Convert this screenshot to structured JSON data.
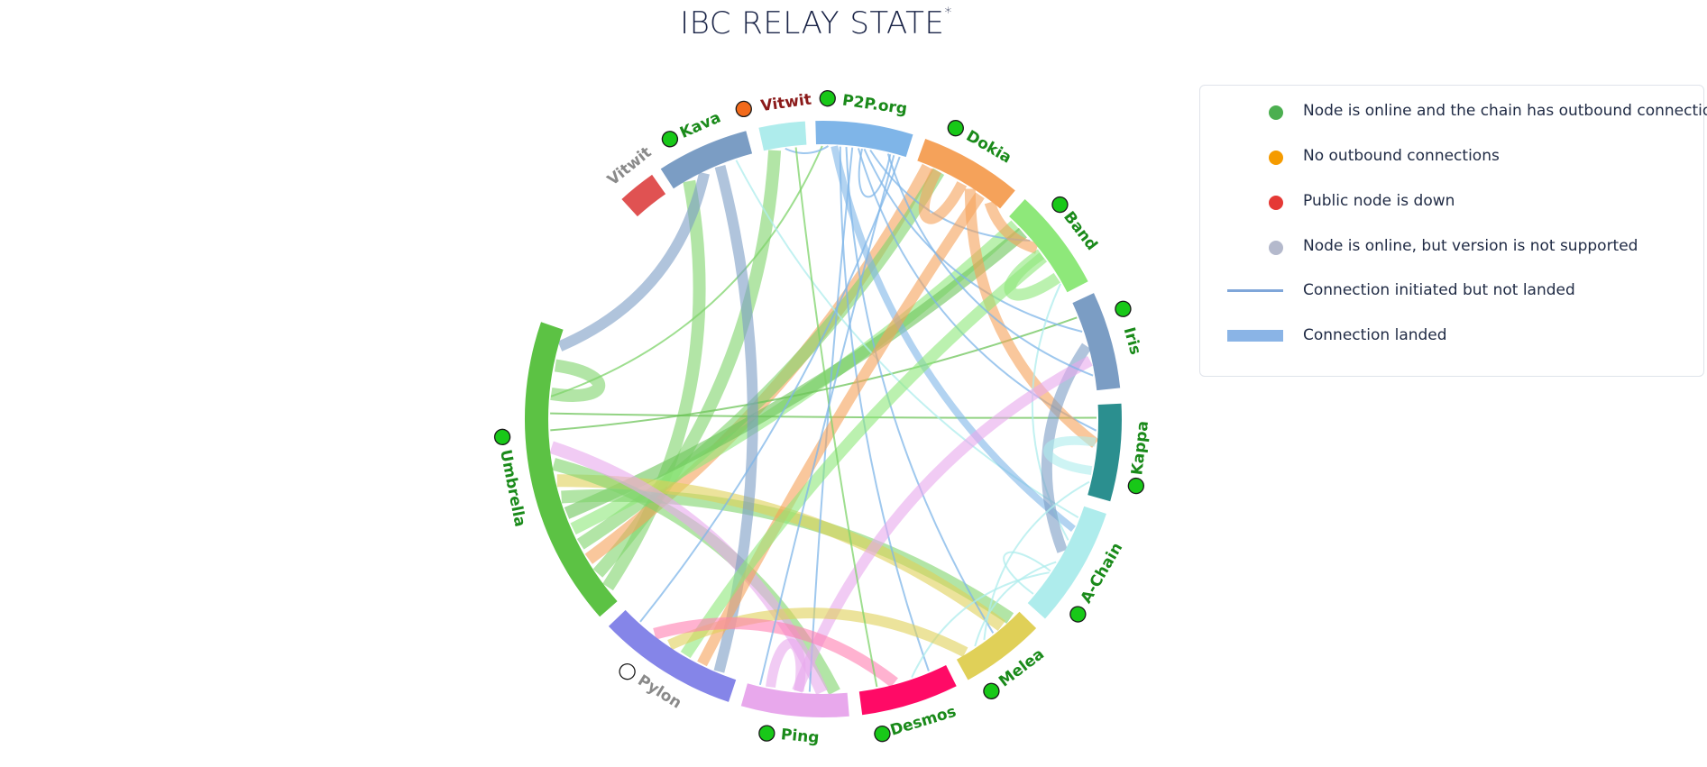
{
  "title": {
    "text": "IBC RELAY STATE",
    "footnote_mark": "*"
  },
  "legend": {
    "items": [
      {
        "kind": "dot",
        "color": "#4caf50",
        "label": "Node is online and the chain has outbound connections"
      },
      {
        "kind": "dot",
        "color": "#f59b00",
        "label": "No outbound connections"
      },
      {
        "kind": "dot",
        "color": "#e53935",
        "label": "Public node is down"
      },
      {
        "kind": "dot",
        "color": "#b4b9cc",
        "label": "Node is online, but version is not supported"
      },
      {
        "kind": "line-thin",
        "color": "#7fa6d9",
        "label": "Connection initiated but not landed"
      },
      {
        "kind": "line-thick",
        "color": "#8ab4e6",
        "label": "Connection landed"
      }
    ]
  },
  "status_colors": {
    "online": "#18c818",
    "no_outbound": "#f26a1b",
    "not_supported": "#ffffff"
  },
  "chains": [
    {
      "id": "vitwit_top",
      "label": "Vitwit",
      "status": "no_outbound",
      "label_color": "#8b1a1a",
      "arc_color": "#aeecec"
    },
    {
      "id": "p2p",
      "label": "P2P.org",
      "status": "online",
      "label_color": "#1a8a1a",
      "arc_color": "#7fb5e8"
    },
    {
      "id": "dokia",
      "label": "Dokia",
      "status": "online",
      "label_color": "#1a8a1a",
      "arc_color": "#f5a25a"
    },
    {
      "id": "band",
      "label": "Band",
      "status": "online",
      "label_color": "#1a8a1a",
      "arc_color": "#8ee87a"
    },
    {
      "id": "iris",
      "label": "Iris",
      "status": "online",
      "label_color": "#1a8a1a",
      "arc_color": "#7b9dc4"
    },
    {
      "id": "kappa",
      "label": "Kappa",
      "status": "online",
      "label_color": "#1a8a1a",
      "arc_color": "#2b8f8f"
    },
    {
      "id": "achain",
      "label": "A-Chain",
      "status": "online",
      "label_color": "#1a8a1a",
      "arc_color": "#aeecec"
    },
    {
      "id": "melea",
      "label": "Melea",
      "status": "online",
      "label_color": "#1a8a1a",
      "arc_color": "#e0d058"
    },
    {
      "id": "desmos",
      "label": "Desmos",
      "status": "online",
      "label_color": "#1a8a1a",
      "arc_color": "#ff0a66"
    },
    {
      "id": "ping",
      "label": "Ping",
      "status": "online",
      "label_color": "#1a8a1a",
      "arc_color": "#e8a8ec"
    },
    {
      "id": "pylon",
      "label": "Pylon",
      "status": "not_supported",
      "label_color": "#8a8a8a",
      "arc_color": "#8585e8"
    },
    {
      "id": "umbrella",
      "label": "Umbrella",
      "status": "online",
      "label_color": "#1a8a1a",
      "arc_color": "#5cc244"
    },
    {
      "id": "vitwit_small",
      "label": "Vitwit",
      "status": "hidden",
      "label_color": "#8a8a8a",
      "arc_color": "#e05252"
    },
    {
      "id": "kava",
      "label": "Kava",
      "status": "online",
      "label_color": "#1a8a1a",
      "arc_color": "#7b9dc4"
    }
  ],
  "links": [
    {
      "source": "umbrella",
      "target": "kava",
      "landed": true,
      "color": "#7ed36a"
    },
    {
      "source": "umbrella",
      "target": "vitwit_top",
      "landed": true,
      "color": "#7ed36a"
    },
    {
      "source": "umbrella",
      "target": "dokia",
      "landed": true,
      "color": "#f5a25a"
    },
    {
      "source": "umbrella",
      "target": "dokia",
      "landed": true,
      "color": "#7ed36a"
    },
    {
      "source": "umbrella",
      "target": "band",
      "landed": true,
      "color": "#8ee87a"
    },
    {
      "source": "umbrella",
      "target": "band",
      "landed": true,
      "color": "#6dc45a"
    },
    {
      "source": "umbrella",
      "target": "melea",
      "landed": true,
      "color": "#7ed36a"
    },
    {
      "source": "umbrella",
      "target": "melea",
      "landed": true,
      "color": "#e0d058"
    },
    {
      "source": "umbrella",
      "target": "ping",
      "landed": true,
      "color": "#7ed36a"
    },
    {
      "source": "umbrella",
      "target": "ping",
      "landed": true,
      "color": "#e8a8ec"
    },
    {
      "source": "umbrella",
      "target": "iris",
      "landed": false,
      "color": "#6dc45a"
    },
    {
      "source": "umbrella",
      "target": "kappa",
      "landed": false,
      "color": "#6dc45a"
    },
    {
      "source": "umbrella",
      "target": "p2p",
      "landed": false,
      "color": "#7ed36a"
    },
    {
      "source": "umbrella",
      "target": "umbrella",
      "landed": true,
      "color": "#7ed36a"
    },
    {
      "source": "kava",
      "target": "umbrella",
      "landed": true,
      "color": "#7b9dc4"
    },
    {
      "source": "kava",
      "target": "pylon",
      "landed": true,
      "color": "#7b9dc4"
    },
    {
      "source": "kava",
      "target": "achain",
      "landed": false,
      "color": "#aeecec"
    },
    {
      "source": "vitwit_top",
      "target": "p2p",
      "landed": false,
      "color": "#7fb5e8"
    },
    {
      "source": "p2p",
      "target": "achain",
      "landed": true,
      "color": "#7fb5e8"
    },
    {
      "source": "p2p",
      "target": "desmos",
      "landed": false,
      "color": "#7fb5e8"
    },
    {
      "source": "p2p",
      "target": "melea",
      "landed": false,
      "color": "#7fb5e8"
    },
    {
      "source": "p2p",
      "target": "ping",
      "landed": false,
      "color": "#7fb5e8"
    },
    {
      "source": "p2p",
      "target": "kappa",
      "landed": false,
      "color": "#7fb5e8"
    },
    {
      "source": "p2p",
      "target": "iris",
      "landed": false,
      "color": "#7fb5e8"
    },
    {
      "source": "p2p",
      "target": "band",
      "landed": false,
      "color": "#7fb5e8"
    },
    {
      "source": "p2p",
      "target": "p2p",
      "landed": false,
      "color": "#7fb5e8"
    },
    {
      "source": "dokia",
      "target": "dokia",
      "landed": true,
      "color": "#f5a25a"
    },
    {
      "source": "dokia",
      "target": "kappa",
      "landed": true,
      "color": "#f5a25a"
    },
    {
      "source": "dokia",
      "target": "pylon",
      "landed": true,
      "color": "#f5a25a"
    },
    {
      "source": "dokia",
      "target": "band",
      "landed": true,
      "color": "#f5a25a"
    },
    {
      "source": "band",
      "target": "pylon",
      "landed": true,
      "color": "#8ee87a"
    },
    {
      "source": "band",
      "target": "band",
      "landed": true,
      "color": "#8ee87a"
    },
    {
      "source": "band",
      "target": "achain",
      "landed": false,
      "color": "#aeecec"
    },
    {
      "source": "iris",
      "target": "achain",
      "landed": true,
      "color": "#7b9dc4"
    },
    {
      "source": "iris",
      "target": "ping",
      "landed": true,
      "color": "#e8a8ec"
    },
    {
      "source": "iris",
      "target": "p2p",
      "landed": false,
      "color": "#7fb5e8"
    },
    {
      "source": "kappa",
      "target": "kappa",
      "landed": true,
      "color": "#aeecec"
    },
    {
      "source": "kappa",
      "target": "melea",
      "landed": false,
      "color": "#aeecec"
    },
    {
      "source": "achain",
      "target": "melea",
      "landed": false,
      "color": "#aeecec"
    },
    {
      "source": "achain",
      "target": "desmos",
      "landed": false,
      "color": "#aeecec"
    },
    {
      "source": "achain",
      "target": "achain",
      "landed": false,
      "color": "#aeecec"
    },
    {
      "source": "melea",
      "target": "pylon",
      "landed": true,
      "color": "#e0d058"
    },
    {
      "source": "desmos",
      "target": "pylon",
      "landed": true,
      "color": "#ff7eb0"
    },
    {
      "source": "desmos",
      "target": "vitwit_top",
      "landed": false,
      "color": "#7ed36a"
    },
    {
      "source": "ping",
      "target": "ping",
      "landed": true,
      "color": "#e8a8ec"
    },
    {
      "source": "ping",
      "target": "p2p",
      "landed": false,
      "color": "#7fb5e8"
    },
    {
      "source": "pylon",
      "target": "p2p",
      "landed": false,
      "color": "#7fb5e8"
    }
  ]
}
